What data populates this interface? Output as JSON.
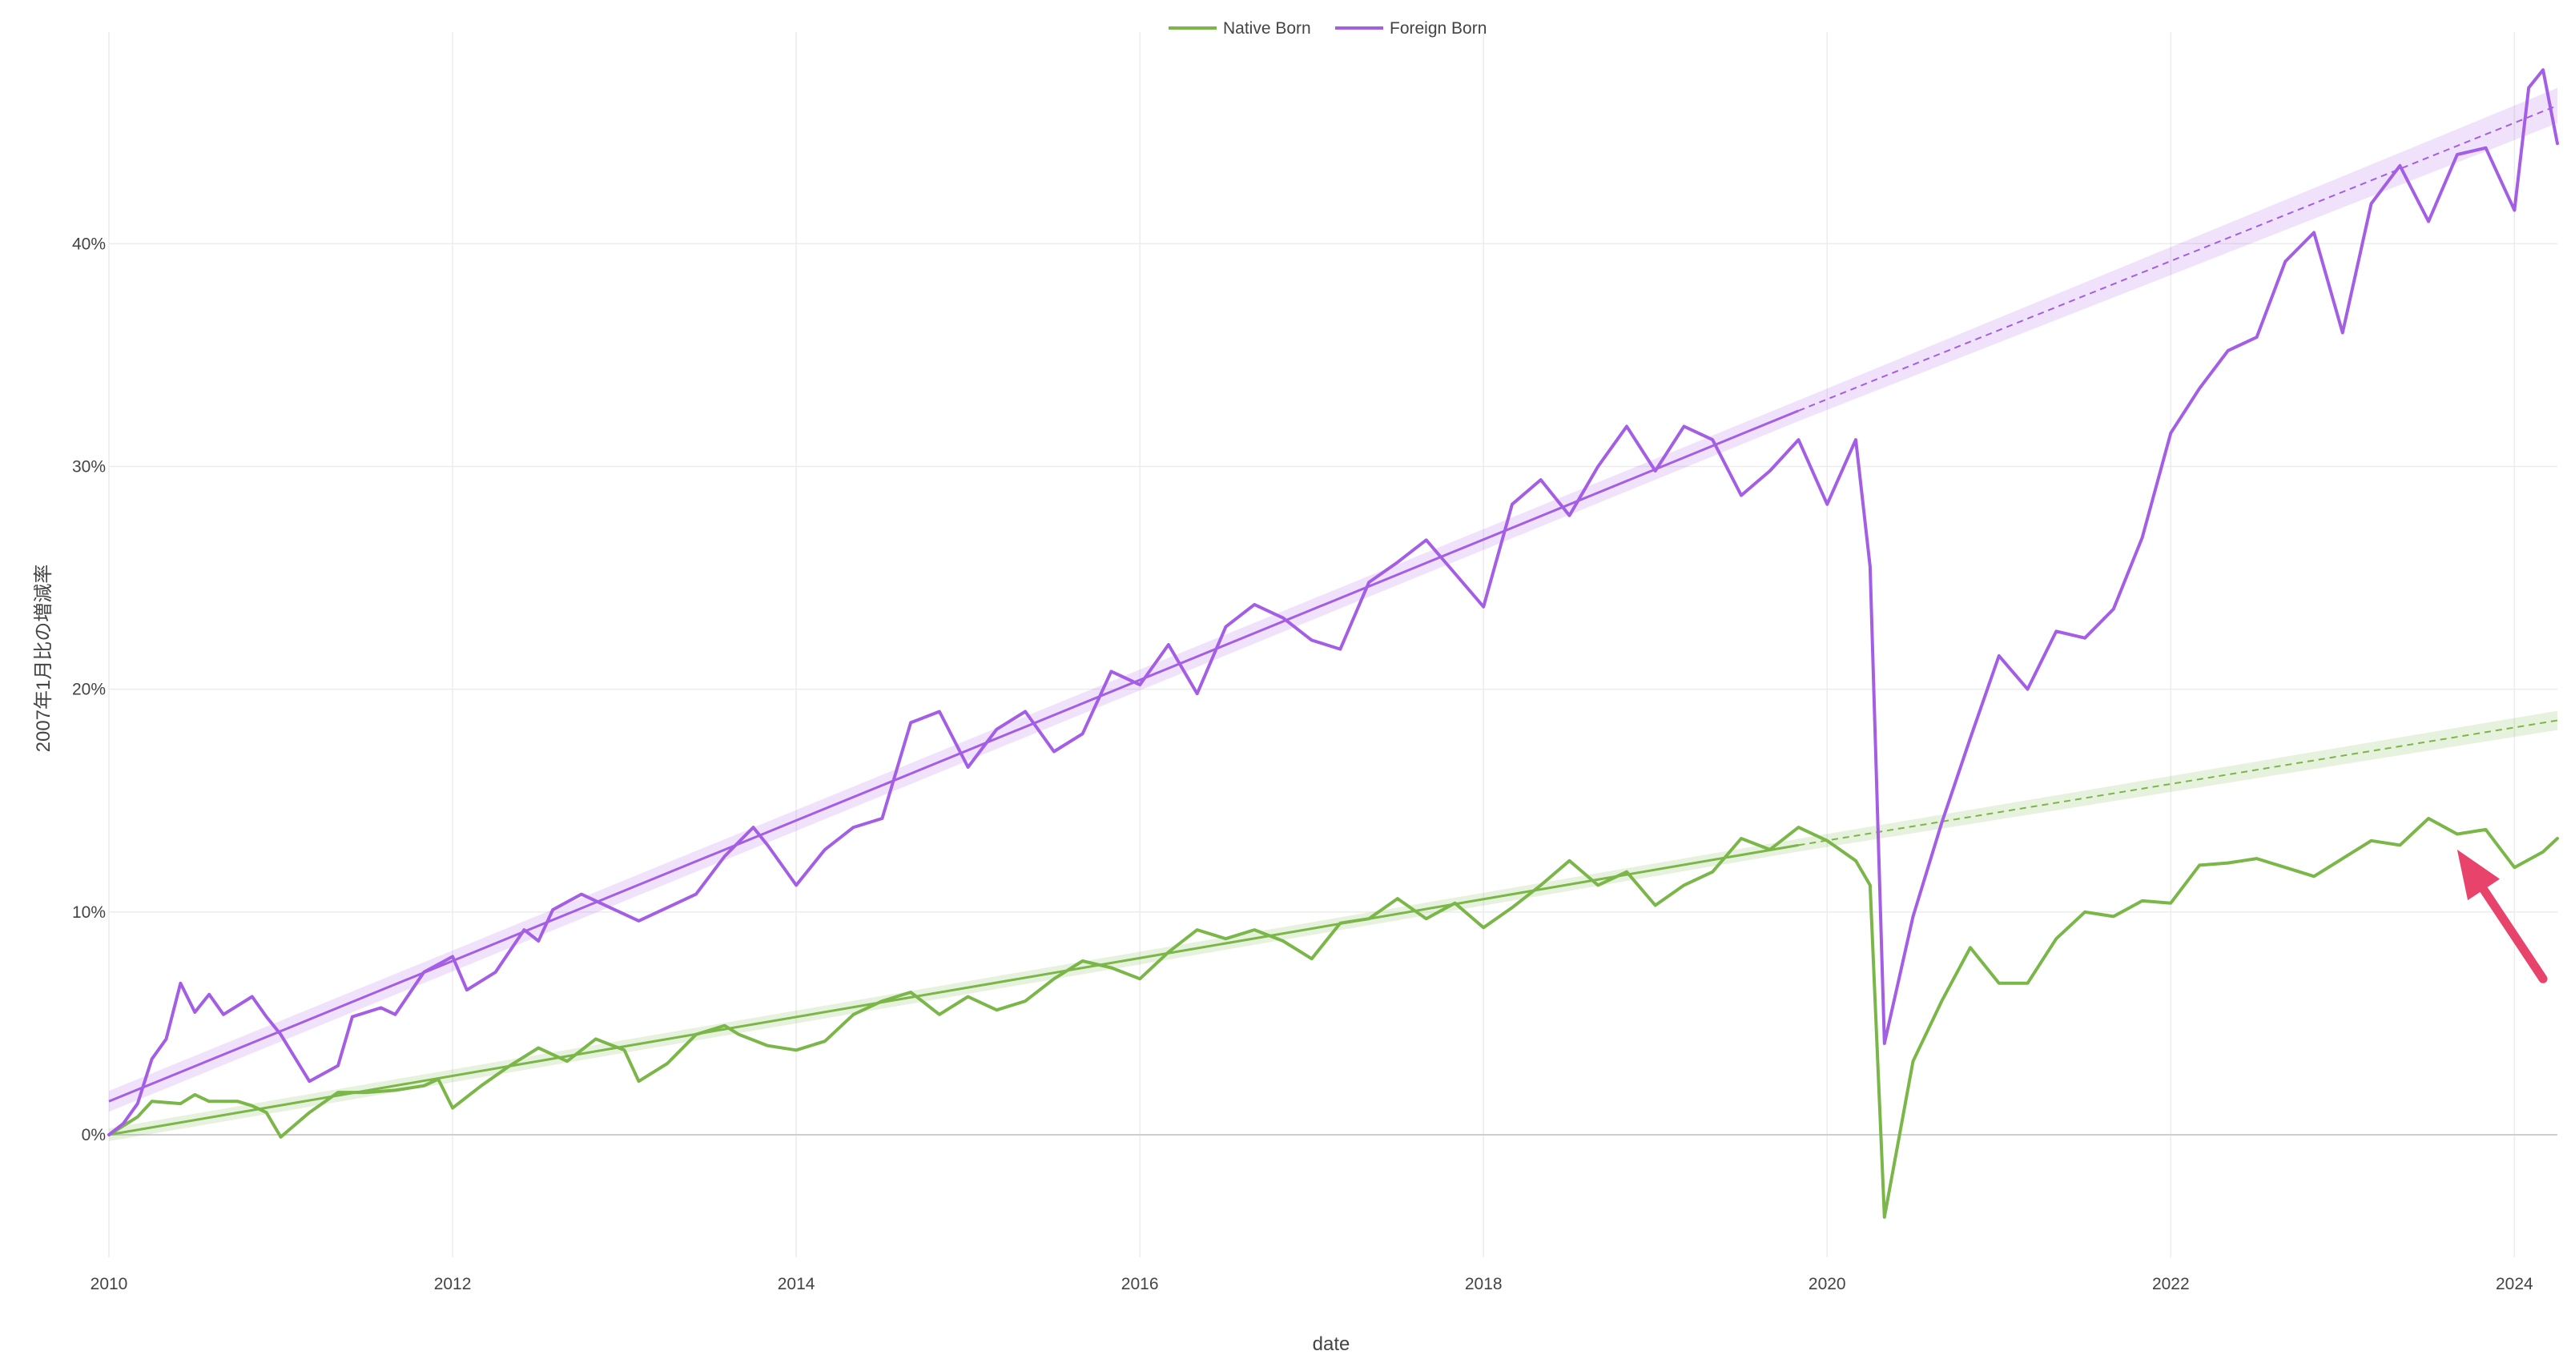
{
  "chart_data": {
    "type": "line",
    "xlabel": "date",
    "ylabel": "2007年1月比の増減率",
    "x_range": [
      "2010-01",
      "2024-04"
    ],
    "y_range": [
      -0.055,
      0.495
    ],
    "x_ticks": [
      {
        "date": "2010-01",
        "label": "2010"
      },
      {
        "date": "2012-01",
        "label": "2012"
      },
      {
        "date": "2014-01",
        "label": "2014"
      },
      {
        "date": "2016-01",
        "label": "2016"
      },
      {
        "date": "2018-01",
        "label": "2018"
      },
      {
        "date": "2020-01",
        "label": "2020"
      },
      {
        "date": "2022-01",
        "label": "2022"
      },
      {
        "date": "2024-01",
        "label": "2024"
      }
    ],
    "y_ticks": [
      {
        "value": 0.0,
        "label": "0%"
      },
      {
        "value": 0.1,
        "label": "10%"
      },
      {
        "value": 0.2,
        "label": "20%"
      },
      {
        "value": 0.3,
        "label": "30%"
      },
      {
        "value": 0.4,
        "label": "40%"
      }
    ],
    "grid": true,
    "legend": {
      "position": "top-center"
    },
    "series": [
      {
        "name": "Native Born",
        "color": "#7ab648",
        "points": [
          [
            "2010-01",
            0.0
          ],
          [
            "2010-03",
            0.008
          ],
          [
            "2010-04",
            0.015
          ],
          [
            "2010-06",
            0.014
          ],
          [
            "2010-07",
            0.018
          ],
          [
            "2010-08",
            0.015
          ],
          [
            "2010-10",
            0.015
          ],
          [
            "2010-11",
            0.013
          ],
          [
            "2010-12",
            0.01
          ],
          [
            "2011-01",
            -0.001
          ],
          [
            "2011-03",
            0.01
          ],
          [
            "2011-05",
            0.019
          ],
          [
            "2011-07",
            0.019
          ],
          [
            "2011-09",
            0.02
          ],
          [
            "2011-11",
            0.022
          ],
          [
            "2011-12",
            0.025
          ],
          [
            "2012-01",
            0.012
          ],
          [
            "2012-03",
            0.022
          ],
          [
            "2012-05",
            0.031
          ],
          [
            "2012-07",
            0.039
          ],
          [
            "2012-09",
            0.033
          ],
          [
            "2012-11",
            0.043
          ],
          [
            "2013-01",
            0.038
          ],
          [
            "2013-02",
            0.024
          ],
          [
            "2013-04",
            0.032
          ],
          [
            "2013-06",
            0.045
          ],
          [
            "2013-08",
            0.049
          ],
          [
            "2013-09",
            0.045
          ],
          [
            "2013-11",
            0.04
          ],
          [
            "2014-01",
            0.038
          ],
          [
            "2014-03",
            0.042
          ],
          [
            "2014-05",
            0.054
          ],
          [
            "2014-07",
            0.06
          ],
          [
            "2014-09",
            0.064
          ],
          [
            "2014-11",
            0.054
          ],
          [
            "2015-01",
            0.062
          ],
          [
            "2015-03",
            0.056
          ],
          [
            "2015-05",
            0.06
          ],
          [
            "2015-07",
            0.07
          ],
          [
            "2015-09",
            0.078
          ],
          [
            "2015-11",
            0.075
          ],
          [
            "2016-01",
            0.07
          ],
          [
            "2016-03",
            0.082
          ],
          [
            "2016-05",
            0.092
          ],
          [
            "2016-07",
            0.088
          ],
          [
            "2016-09",
            0.092
          ],
          [
            "2016-11",
            0.087
          ],
          [
            "2017-01",
            0.079
          ],
          [
            "2017-03",
            0.095
          ],
          [
            "2017-05",
            0.097
          ],
          [
            "2017-07",
            0.106
          ],
          [
            "2017-09",
            0.097
          ],
          [
            "2017-11",
            0.104
          ],
          [
            "2018-01",
            0.093
          ],
          [
            "2018-03",
            0.102
          ],
          [
            "2018-05",
            0.112
          ],
          [
            "2018-07",
            0.123
          ],
          [
            "2018-09",
            0.112
          ],
          [
            "2018-11",
            0.118
          ],
          [
            "2019-01",
            0.103
          ],
          [
            "2019-03",
            0.112
          ],
          [
            "2019-05",
            0.118
          ],
          [
            "2019-07",
            0.133
          ],
          [
            "2019-09",
            0.128
          ],
          [
            "2019-11",
            0.138
          ],
          [
            "2020-01",
            0.132
          ],
          [
            "2020-03",
            0.123
          ],
          [
            "2020-04",
            0.112
          ],
          [
            "2020-05",
            -0.037
          ],
          [
            "2020-07",
            0.033
          ],
          [
            "2020-09",
            0.06
          ],
          [
            "2020-11",
            0.084
          ],
          [
            "2021-01",
            0.068
          ],
          [
            "2021-03",
            0.068
          ],
          [
            "2021-05",
            0.088
          ],
          [
            "2021-07",
            0.1
          ],
          [
            "2021-09",
            0.098
          ],
          [
            "2021-11",
            0.105
          ],
          [
            "2022-01",
            0.104
          ],
          [
            "2022-03",
            0.121
          ],
          [
            "2022-05",
            0.122
          ],
          [
            "2022-07",
            0.124
          ],
          [
            "2022-09",
            0.12
          ],
          [
            "2022-11",
            0.116
          ],
          [
            "2023-01",
            0.124
          ],
          [
            "2023-03",
            0.132
          ],
          [
            "2023-05",
            0.13
          ],
          [
            "2023-07",
            0.142
          ],
          [
            "2023-09",
            0.135
          ],
          [
            "2023-11",
            0.137
          ],
          [
            "2024-01",
            0.12
          ],
          [
            "2024-03",
            0.127
          ],
          [
            "2024-04",
            0.133
          ]
        ],
        "trend": {
          "start": [
            "2010-01",
            0.0
          ],
          "fit_end": [
            "2019-11",
            0.13
          ],
          "projection_end": [
            "2024-04",
            0.186
          ]
        }
      },
      {
        "name": "Foreign Born",
        "color": "#a45ee5",
        "points": [
          [
            "2010-01",
            0.0
          ],
          [
            "2010-02",
            0.005
          ],
          [
            "2010-03",
            0.014
          ],
          [
            "2010-04",
            0.034
          ],
          [
            "2010-05",
            0.043
          ],
          [
            "2010-06",
            0.068
          ],
          [
            "2010-07",
            0.055
          ],
          [
            "2010-08",
            0.063
          ],
          [
            "2010-09",
            0.054
          ],
          [
            "2010-11",
            0.062
          ],
          [
            "2010-12",
            0.053
          ],
          [
            "2011-01",
            0.045
          ],
          [
            "2011-03",
            0.024
          ],
          [
            "2011-05",
            0.031
          ],
          [
            "2011-06",
            0.053
          ],
          [
            "2011-08",
            0.057
          ],
          [
            "2011-09",
            0.054
          ],
          [
            "2011-11",
            0.073
          ],
          [
            "2012-01",
            0.08
          ],
          [
            "2012-02",
            0.065
          ],
          [
            "2012-04",
            0.073
          ],
          [
            "2012-06",
            0.092
          ],
          [
            "2012-07",
            0.087
          ],
          [
            "2012-08",
            0.101
          ],
          [
            "2012-10",
            0.108
          ],
          [
            "2012-12",
            0.102
          ],
          [
            "2013-02",
            0.096
          ],
          [
            "2013-04",
            0.102
          ],
          [
            "2013-06",
            0.108
          ],
          [
            "2013-08",
            0.125
          ],
          [
            "2013-10",
            0.138
          ],
          [
            "2013-11",
            0.13
          ],
          [
            "2014-01",
            0.112
          ],
          [
            "2014-03",
            0.128
          ],
          [
            "2014-05",
            0.138
          ],
          [
            "2014-07",
            0.142
          ],
          [
            "2014-09",
            0.185
          ],
          [
            "2014-11",
            0.19
          ],
          [
            "2015-01",
            0.165
          ],
          [
            "2015-03",
            0.182
          ],
          [
            "2015-05",
            0.19
          ],
          [
            "2015-07",
            0.172
          ],
          [
            "2015-09",
            0.18
          ],
          [
            "2015-11",
            0.208
          ],
          [
            "2016-01",
            0.202
          ],
          [
            "2016-03",
            0.22
          ],
          [
            "2016-05",
            0.198
          ],
          [
            "2016-07",
            0.228
          ],
          [
            "2016-09",
            0.238
          ],
          [
            "2016-11",
            0.232
          ],
          [
            "2017-01",
            0.222
          ],
          [
            "2017-03",
            0.218
          ],
          [
            "2017-05",
            0.248
          ],
          [
            "2017-07",
            0.257
          ],
          [
            "2017-09",
            0.267
          ],
          [
            "2017-11",
            0.252
          ],
          [
            "2018-01",
            0.237
          ],
          [
            "2018-03",
            0.283
          ],
          [
            "2018-05",
            0.294
          ],
          [
            "2018-07",
            0.278
          ],
          [
            "2018-09",
            0.3
          ],
          [
            "2018-11",
            0.318
          ],
          [
            "2019-01",
            0.298
          ],
          [
            "2019-03",
            0.318
          ],
          [
            "2019-05",
            0.312
          ],
          [
            "2019-07",
            0.287
          ],
          [
            "2019-09",
            0.298
          ],
          [
            "2019-11",
            0.312
          ],
          [
            "2020-01",
            0.283
          ],
          [
            "2020-03",
            0.312
          ],
          [
            "2020-04",
            0.255
          ],
          [
            "2020-05",
            0.041
          ],
          [
            "2020-07",
            0.098
          ],
          [
            "2020-09",
            0.14
          ],
          [
            "2020-11",
            0.178
          ],
          [
            "2021-01",
            0.215
          ],
          [
            "2021-03",
            0.2
          ],
          [
            "2021-05",
            0.226
          ],
          [
            "2021-07",
            0.223
          ],
          [
            "2021-09",
            0.236
          ],
          [
            "2021-11",
            0.268
          ],
          [
            "2022-01",
            0.315
          ],
          [
            "2022-03",
            0.335
          ],
          [
            "2022-05",
            0.352
          ],
          [
            "2022-07",
            0.358
          ],
          [
            "2022-09",
            0.392
          ],
          [
            "2022-11",
            0.405
          ],
          [
            "2023-01",
            0.36
          ],
          [
            "2023-03",
            0.418
          ],
          [
            "2023-05",
            0.435
          ],
          [
            "2023-07",
            0.41
          ],
          [
            "2023-09",
            0.44
          ],
          [
            "2023-11",
            0.443
          ],
          [
            "2024-01",
            0.415
          ],
          [
            "2024-02",
            0.47
          ],
          [
            "2024-03",
            0.478
          ],
          [
            "2024-04",
            0.445
          ]
        ],
        "trend": {
          "start": [
            "2010-01",
            0.015
          ],
          "fit_end": [
            "2019-11",
            0.325
          ],
          "projection_end": [
            "2024-04",
            0.462
          ]
        }
      }
    ],
    "annotations": [
      {
        "type": "arrow",
        "color": "#e8436b",
        "from": [
          "2024-03",
          0.07
        ],
        "to": [
          "2023-09",
          0.128
        ]
      }
    ]
  }
}
